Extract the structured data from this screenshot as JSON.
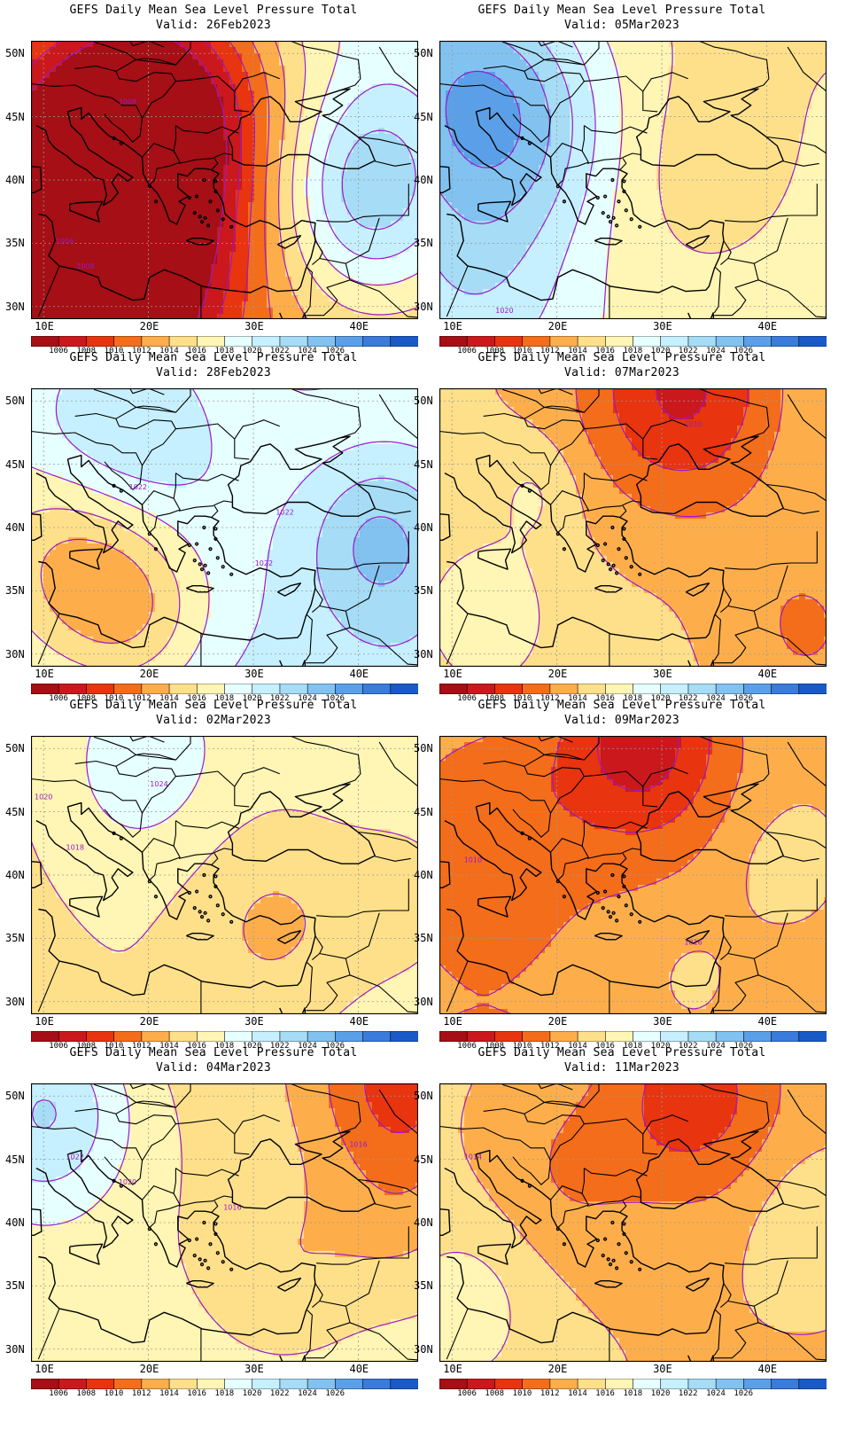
{
  "panels": [
    {
      "line1": "GEFS Daily Mean Sea Level Pressure Total",
      "line2": "Valid: 26Feb2023",
      "base": 1016,
      "gx": 40,
      "gy": 2,
      "centers": [
        [
          14,
          40,
          -13,
          10
        ],
        [
          22,
          47,
          -8,
          8
        ],
        [
          41,
          39,
          8,
          6
        ],
        [
          17,
          31,
          -6,
          7
        ]
      ],
      "contour_labels": [
        [
          "1008",
          18,
          46
        ],
        [
          "1006",
          12,
          35
        ],
        [
          "1008",
          14,
          33
        ]
      ]
    },
    {
      "line1": "GEFS Daily Mean Sea Level Pressure Total",
      "line2": "Valid: 05Mar2023",
      "base": 1016.5,
      "gx": -12,
      "gy": 1,
      "centers": [
        [
          10,
          48,
          8,
          8
        ],
        [
          17,
          44,
          4,
          6
        ],
        [
          12,
          32,
          4,
          7
        ],
        [
          34,
          40,
          -1.5,
          6
        ]
      ],
      "contour_labels": [
        [
          "1020",
          15,
          29.5
        ]
      ]
    },
    {
      "line1": "GEFS Daily Mean Sea Level Pressure Total",
      "line2": "Valid: 28Feb2023",
      "base": 1019,
      "gx": -28,
      "gy": 6,
      "centers": [
        [
          13,
          37,
          -6,
          6
        ],
        [
          19,
          33,
          -4,
          5
        ],
        [
          42,
          39,
          5,
          5
        ],
        [
          17,
          48,
          5,
          7
        ]
      ],
      "contour_labels": [
        [
          "1022",
          19,
          43
        ],
        [
          "1022",
          33,
          41
        ],
        [
          "1022",
          31,
          37
        ]
      ]
    },
    {
      "line1": "GEFS Daily Mean Sea Level Pressure Total",
      "line2": "Valid: 07Mar2023",
      "base": 1014.5,
      "gx": 0,
      "gy": 4,
      "centers": [
        [
          32,
          51,
          -7,
          7
        ],
        [
          13,
          33,
          3,
          5
        ],
        [
          44,
          32,
          -3,
          6
        ],
        [
          18,
          43,
          2,
          3
        ]
      ],
      "contour_labels": [
        [
          "1010",
          33,
          48
        ]
      ]
    },
    {
      "line1": "GEFS Daily Mean Sea Level Pressure Total",
      "line2": "Valid: 02Mar2023",
      "base": 1016.5,
      "gx": 0,
      "gy": 10,
      "centers": [
        [
          19,
          49,
          3,
          6
        ],
        [
          32,
          36,
          -3,
          6
        ],
        [
          45,
          38,
          -2,
          5
        ]
      ],
      "contour_labels": [
        [
          "1024",
          21,
          47
        ],
        [
          "1020",
          10,
          46
        ],
        [
          "1018",
          13,
          42
        ]
      ]
    },
    {
      "line1": "GEFS Daily Mean Sea Level Pressure Total",
      "line2": "Valid: 09Mar2023",
      "base": 1013,
      "gx": 16,
      "gy": 0,
      "centers": [
        [
          28,
          51,
          -7,
          6
        ],
        [
          13,
          44,
          -3,
          6
        ],
        [
          42,
          40,
          2,
          4
        ],
        [
          33,
          31,
          2,
          4
        ]
      ],
      "contour_labels": [
        [
          "1010",
          12,
          41
        ],
        [
          "1016",
          33,
          34.5
        ]
      ]
    },
    {
      "line1": "GEFS Daily Mean Sea Level Pressure Total",
      "line2": "Valid: 04Mar2023",
      "base": 1016,
      "gx": -16,
      "gy": 2,
      "centers": [
        [
          10,
          49,
          7,
          6
        ],
        [
          44,
          51,
          -6,
          6
        ],
        [
          33,
          36,
          -2,
          5
        ],
        [
          44,
          40,
          -2,
          5
        ]
      ],
      "contour_labels": [
        [
          "1022",
          13,
          45
        ],
        [
          "1020",
          18,
          43
        ],
        [
          "1016",
          40,
          46
        ],
        [
          "1016",
          28,
          41
        ]
      ]
    },
    {
      "line1": "GEFS Daily Mean Sea Level Pressure Total",
      "line2": "Valid: 11Mar2023",
      "base": 1014,
      "gx": 0,
      "gy": -2,
      "centers": [
        [
          33,
          50,
          -5,
          6
        ],
        [
          11,
          33,
          3,
          5
        ],
        [
          44,
          40,
          2,
          4
        ],
        [
          21,
          44,
          -2,
          5
        ]
      ],
      "contour_labels": [
        [
          "1014",
          12,
          45
        ]
      ]
    }
  ],
  "lat_labels": [
    "50N",
    "45N",
    "40N",
    "35N",
    "30N"
  ],
  "lon_labels": [
    "10E",
    "20E",
    "30E",
    "40E"
  ],
  "lat_values": [
    50,
    45,
    40,
    35,
    30
  ],
  "lon_values": [
    10,
    20,
    30,
    40
  ],
  "extent": {
    "lon_min": 8.8,
    "lon_max": 45.7,
    "lat_min": 29,
    "lat_max": 51
  },
  "colorbar_labels": [
    "1006",
    "1008",
    "1010",
    "1012",
    "1014",
    "1016",
    "1018",
    "1020",
    "1022",
    "1024",
    "1026"
  ],
  "colorbar_colors": [
    "#a50f15",
    "#cb181d",
    "#e8340f",
    "#f46d1a",
    "#fdae4b",
    "#fee08b",
    "#fff5b4",
    "#e6ffff",
    "#c6f0ff",
    "#a6dcf5",
    "#82c2f0",
    "#5a9fe8",
    "#3a7bdc",
    "#1a5ac8"
  ],
  "contour_color": "#9b19c8",
  "coast_color": "#000000"
}
